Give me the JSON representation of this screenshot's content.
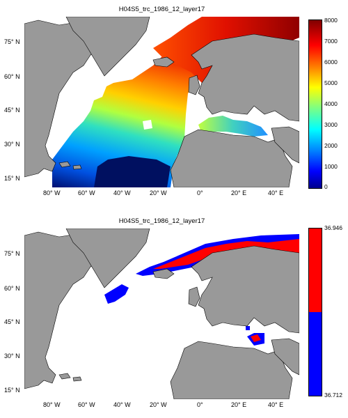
{
  "panels": [
    {
      "title": "H04S5_trc_1986_12_layer17",
      "lat_labels": [
        "75° N",
        "60° N",
        "45° N",
        "30° N",
        "15° N"
      ],
      "lon_labels": [
        "80° W",
        "60° W",
        "40° W",
        "20° W",
        "0°",
        "20° E",
        "40° E"
      ],
      "colorbar": {
        "type": "continuous jet",
        "ticks": [
          "8000",
          "7000",
          "6000",
          "5000",
          "4000",
          "3000",
          "2000",
          "1000",
          "0"
        ],
        "min": 0,
        "max": 8000
      }
    },
    {
      "title": "H04S5_trc_1986_12_layer17",
      "lat_labels": [
        "75° N",
        "60° N",
        "45° N",
        "30° N",
        "15° N"
      ],
      "lon_labels": [
        "80° W",
        "60° W",
        "40° W",
        "20° W",
        "0°",
        "20° E",
        "40° E"
      ],
      "colorbar": {
        "type": "two-class",
        "top_label": "36.946",
        "bottom_label": "36.712",
        "high_color": "#ff0000",
        "low_color": "#0000ff"
      }
    }
  ],
  "colors": {
    "land": "#999999",
    "ocean_nodata": "#ffffff"
  }
}
